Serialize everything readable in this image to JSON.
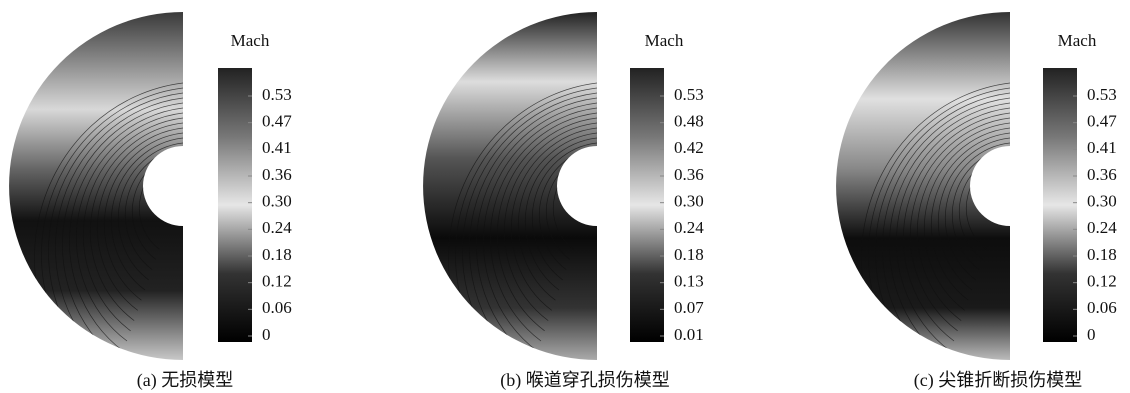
{
  "panels": [
    {
      "colorbar": {
        "title": "Mach",
        "ticks": [
          "0.53",
          "0.47",
          "0.41",
          "0.36",
          "0.30",
          "0.24",
          "0.18",
          "0.12",
          "0.06",
          "0"
        ]
      },
      "caption": "(a) 无损模型"
    },
    {
      "colorbar": {
        "title": "Mach",
        "ticks": [
          "0.53",
          "0.48",
          "0.42",
          "0.36",
          "0.30",
          "0.24",
          "0.18",
          "0.13",
          "0.07",
          "0.01"
        ]
      },
      "caption": "(b) 喉道穿孔损伤模型"
    },
    {
      "colorbar": {
        "title": "Mach",
        "ticks": [
          "0.53",
          "0.47",
          "0.41",
          "0.36",
          "0.30",
          "0.24",
          "0.18",
          "0.12",
          "0.06",
          "0"
        ]
      },
      "caption": "(c) 尖锥折断损伤模型"
    }
  ]
}
